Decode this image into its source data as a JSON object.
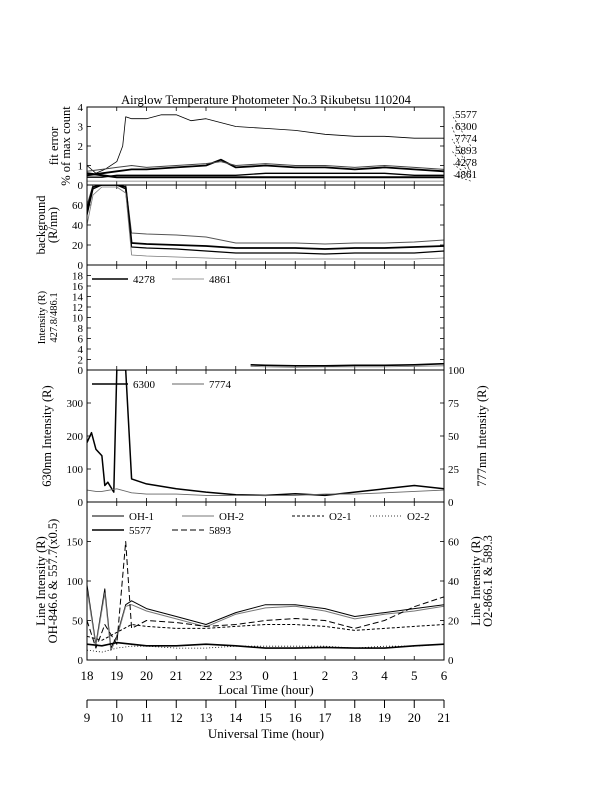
{
  "title": "Airglow Temperature Photometer No.3   Rikubetsu    110204",
  "x_axes": {
    "local_time": {
      "label": "Local Time (hour)",
      "ticks": [
        "18",
        "19",
        "20",
        "21",
        "22",
        "23",
        "0",
        "1",
        "2",
        "3",
        "4",
        "5",
        "6"
      ]
    },
    "universal_time": {
      "label": "Universal Time (hour)",
      "ticks": [
        "9",
        "10",
        "11",
        "12",
        "13",
        "14",
        "15",
        "16",
        "17",
        "18",
        "19",
        "20",
        "21"
      ]
    }
  },
  "chart_data": [
    {
      "type": "line",
      "panel": "fit-error",
      "ylabel": [
        "fit error",
        "% of max count"
      ],
      "ylim": [
        0,
        4
      ],
      "yticks": [
        "0",
        "1",
        "2",
        "3",
        "4"
      ],
      "x_unit": "hours after 18 LT",
      "series": [
        {
          "name": "5577",
          "x": [
            0,
            0.3,
            0.6,
            1.0,
            1.2,
            1.3,
            1.5,
            2.0,
            2.5,
            3.0,
            3.5,
            4.0,
            5.0,
            6.0,
            7.0,
            8.0,
            9.0,
            10.0,
            11.0,
            12.0,
            12.5,
            12.9
          ],
          "y": [
            1.0,
            0.6,
            0.8,
            1.2,
            2.0,
            3.5,
            3.4,
            3.4,
            3.6,
            3.6,
            3.3,
            3.4,
            3.0,
            2.9,
            2.8,
            2.6,
            2.5,
            2.5,
            2.4,
            2.4,
            2.1,
            2.0
          ]
        },
        {
          "name": "6300",
          "x": [
            0,
            0.5,
            1.0,
            1.5,
            2.0,
            3.0,
            4.0,
            4.5,
            5.0,
            6.0,
            7.0,
            8.0,
            9.0,
            10.0,
            11.0,
            12.0,
            12.9
          ],
          "y": [
            0.5,
            0.6,
            0.7,
            0.8,
            0.8,
            0.9,
            1.0,
            1.3,
            0.9,
            1.0,
            0.9,
            0.9,
            0.8,
            0.9,
            0.8,
            0.7,
            0.6
          ]
        },
        {
          "name": "7774",
          "x": [
            0,
            0.5,
            1.0,
            1.5,
            2.0,
            3.0,
            4.0,
            4.5,
            5.0,
            6.0,
            7.0,
            8.0,
            9.0,
            10.0,
            11.0,
            12.0,
            12.9
          ],
          "y": [
            0.7,
            0.8,
            0.9,
            1.0,
            0.9,
            1.0,
            1.1,
            1.2,
            1.0,
            1.1,
            1.0,
            1.0,
            0.9,
            1.0,
            0.9,
            0.8,
            0.7
          ]
        },
        {
          "name": "5893",
          "x": [
            0,
            0.5,
            1.0,
            1.5,
            2.0,
            3.0,
            4.0,
            5.0,
            6.0,
            7.0,
            8.0,
            9.0,
            10.0,
            11.0,
            12.0,
            12.9
          ],
          "y": [
            0.4,
            0.4,
            0.5,
            0.5,
            0.5,
            0.5,
            0.5,
            0.5,
            0.6,
            0.6,
            0.6,
            0.6,
            0.6,
            0.5,
            0.5,
            0.5
          ]
        },
        {
          "name": "4278",
          "x": [
            0,
            0.5,
            1.0,
            1.5,
            2.0,
            3.0,
            4.0,
            5.0,
            6.0,
            7.0,
            8.0,
            9.0,
            10.0,
            11.0,
            12.0,
            12.9
          ],
          "y": [
            0.6,
            0.5,
            0.4,
            0.4,
            0.4,
            0.4,
            0.4,
            0.4,
            0.4,
            0.4,
            0.4,
            0.4,
            0.4,
            0.4,
            0.4,
            0.4
          ]
        },
        {
          "name": "4861",
          "x": [
            0,
            0.5,
            1.0,
            1.5,
            2.0,
            3.0,
            4.0,
            5.0,
            6.0,
            7.0,
            8.0,
            9.0,
            10.0,
            11.0,
            12.0,
            12.9
          ],
          "y": [
            0.2,
            0.2,
            0.2,
            0.2,
            0.2,
            0.2,
            0.2,
            0.2,
            0.2,
            0.2,
            0.2,
            0.2,
            0.2,
            0.2,
            0.2,
            0.2
          ]
        }
      ]
    },
    {
      "type": "line",
      "panel": "background",
      "ylabel": [
        "background",
        "(R/nm)"
      ],
      "ylim": [
        0,
        80
      ],
      "yticks": [
        "0",
        "20",
        "40",
        "60"
      ],
      "series": [
        {
          "x": [
            0,
            0.2,
            0.5,
            1.0,
            1.3,
            1.5,
            2.0,
            3.0,
            4.0,
            5.0,
            6.0,
            7.0,
            8.0,
            9.0,
            10.0,
            11.0,
            12.0,
            12.9
          ],
          "y": [
            60,
            80,
            82,
            82,
            80,
            32,
            31,
            30,
            28,
            22,
            22,
            22,
            21,
            22,
            22,
            23,
            25,
            28
          ]
        },
        {
          "x": [
            0,
            0.2,
            0.5,
            1.0,
            1.3,
            1.5,
            2.0,
            3.0,
            4.0,
            5.0,
            6.0,
            7.0,
            8.0,
            9.0,
            10.0,
            11.0,
            12.0,
            12.9
          ],
          "y": [
            55,
            78,
            80,
            80,
            78,
            22,
            21,
            20,
            19,
            17,
            17,
            17,
            16,
            17,
            17,
            18,
            19,
            20
          ]
        },
        {
          "x": [
            0,
            0.2,
            0.5,
            1.0,
            1.3,
            1.5,
            2.0,
            3.0,
            4.0,
            5.0,
            6.0,
            7.0,
            8.0,
            9.0,
            10.0,
            11.0,
            12.0,
            12.9
          ],
          "y": [
            50,
            76,
            80,
            80,
            76,
            18,
            17,
            16,
            14,
            12,
            12,
            12,
            11,
            12,
            12,
            12,
            14,
            16
          ]
        },
        {
          "x": [
            0,
            0.2,
            0.5,
            1.0,
            1.3,
            1.5,
            2.0,
            3.0,
            4.0,
            5.0,
            6.0,
            7.0,
            8.0,
            9.0,
            10.0,
            11.0,
            12.0,
            12.9
          ],
          "y": [
            40,
            70,
            78,
            78,
            72,
            10,
            9,
            8,
            7,
            6,
            6,
            6,
            6,
            6,
            6,
            6,
            7,
            8
          ]
        }
      ]
    },
    {
      "type": "line",
      "panel": "intensity-427-486",
      "ylabel": [
        "Intensity (R)",
        "427.8/486.1"
      ],
      "ylim": [
        0,
        20
      ],
      "yticks": [
        "0",
        "2",
        "4",
        "6",
        "8",
        "10",
        "12",
        "14",
        "16",
        "18"
      ],
      "series": [
        {
          "name": "4278",
          "x": [
            5.5,
            6.0,
            7.0,
            8.0,
            9.0,
            10.0,
            11.0,
            12.0,
            12.9
          ],
          "y": [
            1.0,
            0.9,
            0.8,
            0.8,
            0.9,
            0.9,
            1.0,
            1.2,
            2.0
          ]
        },
        {
          "name": "4861",
          "x": [
            5.5,
            6.0,
            7.0,
            8.0,
            9.0,
            10.0,
            11.0,
            12.0,
            12.9
          ],
          "y": [
            0.7,
            0.6,
            0.5,
            0.6,
            0.6,
            0.6,
            0.7,
            0.8,
            1.0
          ]
        }
      ]
    },
    {
      "type": "line",
      "panel": "630-777",
      "ylabel": "630nm Intensity (R)",
      "y2label": "777nm Intensity (R)",
      "ylim": [
        0,
        400
      ],
      "yticks": [
        "0",
        "100",
        "200",
        "300"
      ],
      "y2lim": [
        0,
        100
      ],
      "y2ticks": [
        "0",
        "25",
        "50",
        "75",
        "100"
      ],
      "series": [
        {
          "name": "6300",
          "x": [
            0,
            0.15,
            0.3,
            0.5,
            0.6,
            0.7,
            0.9,
            1.0,
            1.3,
            1.5,
            2.0,
            3.0,
            4.0,
            5.0,
            6.0,
            7.0,
            8.0,
            9.0,
            10.0,
            11.0,
            12.0,
            12.9
          ],
          "y": [
            180,
            210,
            160,
            140,
            50,
            60,
            30,
            400,
            400,
            70,
            55,
            40,
            30,
            22,
            20,
            25,
            20,
            30,
            40,
            50,
            40,
            80
          ]
        },
        {
          "name": "7774",
          "x": [
            0,
            0.3,
            0.5,
            1.0,
            1.5,
            2.0,
            3.0,
            4.0,
            5.0,
            6.0,
            7.0,
            8.0,
            9.0,
            10.0,
            11.0,
            12.0,
            12.9
          ],
          "y": [
            9,
            8,
            8,
            10,
            7,
            6,
            6,
            5,
            5,
            5,
            5,
            6,
            6,
            7,
            8,
            9,
            10
          ]
        }
      ]
    },
    {
      "type": "line",
      "panel": "line-intensity",
      "ylabel": [
        "Line Intensity (R)",
        "OH-846.6 & 557.7(x0.5)"
      ],
      "y2label": [
        "Line Intensity (R)",
        "O2-866.1 & 589.3"
      ],
      "ylim": [
        0,
        200
      ],
      "yticks": [
        "0",
        "50",
        "100",
        "150"
      ],
      "y2lim": [
        0,
        80
      ],
      "y2ticks": [
        "0",
        "20",
        "40",
        "60"
      ],
      "series": [
        {
          "name": "OH-1",
          "x": [
            0,
            0.3,
            0.6,
            0.8,
            1.0,
            1.3,
            1.5,
            2.0,
            3.0,
            4.0,
            5.0,
            6.0,
            7.0,
            8.0,
            9.0,
            10.0,
            11.0,
            12.0,
            12.9
          ],
          "y": [
            95,
            20,
            90,
            15,
            30,
            70,
            75,
            65,
            55,
            45,
            60,
            70,
            70,
            65,
            55,
            60,
            65,
            70,
            70
          ]
        },
        {
          "name": "OH-2",
          "x": [
            0,
            0.3,
            0.6,
            0.8,
            1.0,
            1.3,
            1.5,
            2.0,
            3.0,
            4.0,
            5.0,
            6.0,
            7.0,
            8.0,
            9.0,
            10.0,
            11.0,
            12.0,
            12.9
          ],
          "y": [
            90,
            18,
            85,
            12,
            28,
            68,
            70,
            62,
            52,
            42,
            58,
            66,
            68,
            62,
            52,
            58,
            62,
            68,
            68
          ]
        },
        {
          "name": "O2-1",
          "x": [
            0,
            0.5,
            1.0,
            1.5,
            2.0,
            3.0,
            4.0,
            5.0,
            6.0,
            7.0,
            8.0,
            9.0,
            10.0,
            11.0,
            12.0,
            12.9
          ],
          "y": [
            12,
            10,
            14,
            18,
            17,
            16,
            16,
            17,
            18,
            18,
            17,
            15,
            16,
            17,
            18,
            19
          ]
        },
        {
          "name": "O2-2",
          "x": [
            0,
            0.5,
            1.0,
            1.5,
            2.0,
            3.0,
            4.0,
            5.0,
            6.0,
            7.0,
            8.0,
            9.0,
            10.0,
            11.0,
            12.0,
            12.9
          ],
          "y": [
            5,
            4,
            6,
            7,
            7,
            6,
            6,
            7,
            7,
            7,
            7,
            6,
            7,
            7,
            8,
            8
          ]
        },
        {
          "name": "5577",
          "x": [
            0,
            0.5,
            1.0,
            1.5,
            2.0,
            3.0,
            4.0,
            5.0,
            6.0,
            7.0,
            8.0,
            9.0,
            10.0,
            11.0,
            12.0,
            12.9
          ],
          "y": [
            20,
            18,
            22,
            20,
            18,
            18,
            20,
            18,
            15,
            15,
            16,
            15,
            15,
            18,
            20,
            20
          ]
        },
        {
          "name": "5893",
          "x": [
            0,
            0.3,
            0.6,
            1.0,
            1.3,
            1.5,
            2.0,
            3.0,
            4.0,
            5.0,
            6.0,
            7.0,
            8.0,
            9.0,
            10.0,
            11.0,
            12.0,
            12.9
          ],
          "y": [
            20,
            6,
            18,
            8,
            60,
            16,
            20,
            19,
            17,
            18,
            20,
            21,
            20,
            16,
            20,
            27,
            32,
            40
          ]
        }
      ]
    }
  ]
}
